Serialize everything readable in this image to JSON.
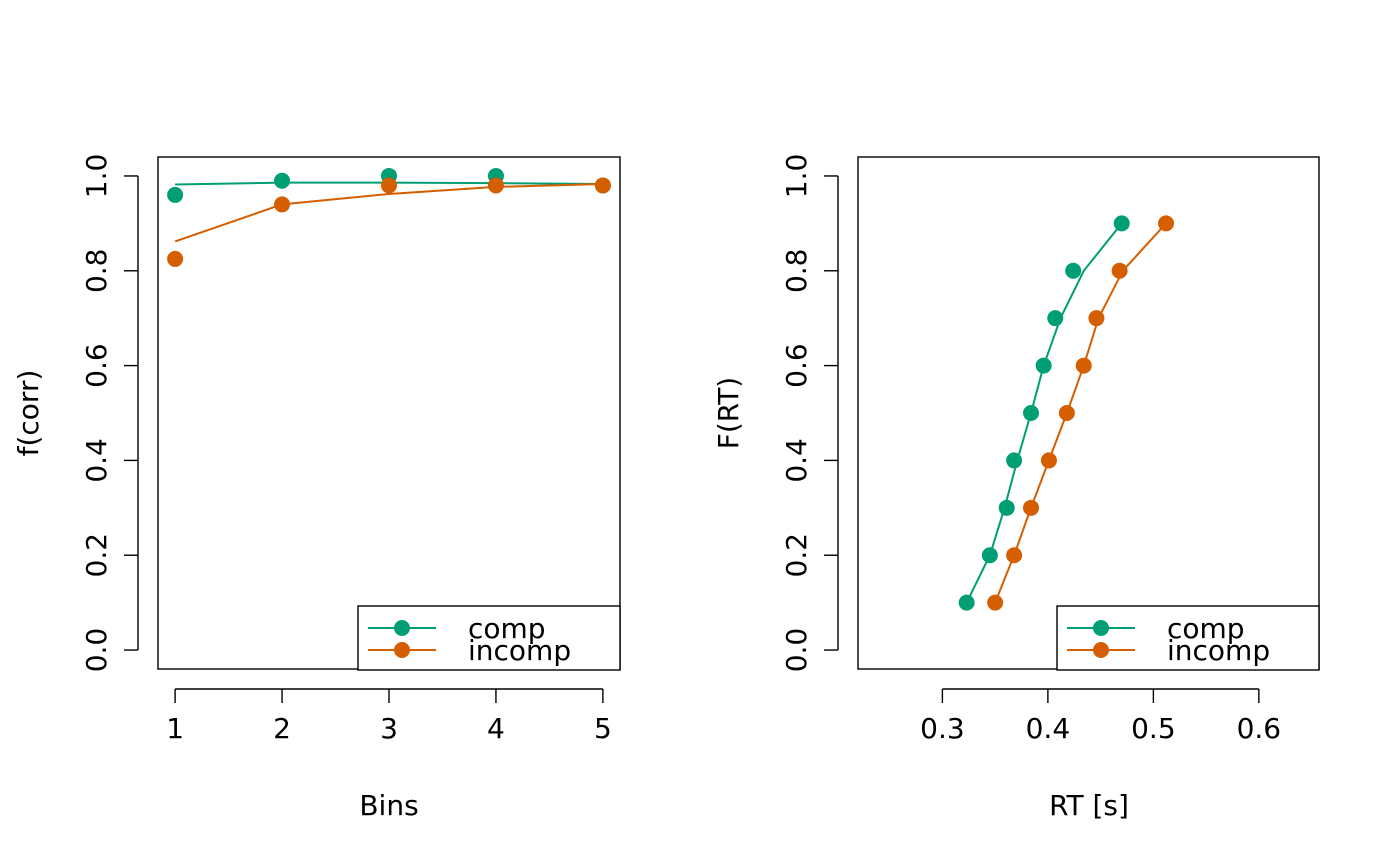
{
  "chart_data": [
    {
      "type": "line",
      "title": "",
      "xlabel": "Bins",
      "ylabel": "f(corr)",
      "xlim": [
        0.84,
        5.16
      ],
      "ylim": [
        -0.04,
        1.04
      ],
      "xticks": [
        1,
        2,
        3,
        4,
        5
      ],
      "yticks": [
        0.0,
        0.2,
        0.4,
        0.6,
        0.8,
        1.0
      ],
      "grid": false,
      "legend": {
        "position": "bottom-right"
      },
      "series": [
        {
          "name": "comp",
          "color": "#009E73",
          "points": {
            "x": [
              1,
              2,
              3,
              4,
              5
            ],
            "y": [
              0.96,
              0.99,
              1.0,
              1.0,
              0.98
            ]
          },
          "line": {
            "x": [
              1,
              2,
              3,
              4,
              5
            ],
            "y": [
              0.982,
              0.986,
              0.986,
              0.985,
              0.983
            ]
          }
        },
        {
          "name": "incomp",
          "color": "#D55E00",
          "points": {
            "x": [
              1,
              2,
              3,
              4,
              5
            ],
            "y": [
              0.825,
              0.94,
              0.98,
              0.98,
              0.98
            ]
          },
          "line": {
            "x": [
              1,
              2,
              3,
              4,
              5
            ],
            "y": [
              0.862,
              0.94,
              0.962,
              0.977,
              0.983
            ]
          }
        }
      ]
    },
    {
      "type": "line",
      "title": "",
      "xlabel": "RT [s]",
      "ylabel": "F(RT)",
      "xlim": [
        0.22,
        0.657
      ],
      "ylim": [
        -0.04,
        1.04
      ],
      "xticks": [
        0.3,
        0.4,
        0.5,
        0.6
      ],
      "yticks": [
        0.0,
        0.2,
        0.4,
        0.6,
        0.8,
        1.0
      ],
      "grid": false,
      "legend": {
        "position": "bottom-right"
      },
      "series": [
        {
          "name": "comp",
          "color": "#009E73",
          "points": {
            "x": [
              0.323,
              0.345,
              0.361,
              0.368,
              0.384,
              0.396,
              0.407,
              0.424,
              0.47
            ],
            "y": [
              0.1,
              0.2,
              0.3,
              0.4,
              0.5,
              0.6,
              0.7,
              0.8,
              0.9
            ]
          },
          "line": {
            "x": [
              0.323,
              0.345,
              0.359,
              0.371,
              0.384,
              0.396,
              0.412,
              0.434,
              0.47
            ],
            "y": [
              0.1,
              0.2,
              0.3,
              0.4,
              0.5,
              0.6,
              0.7,
              0.8,
              0.9
            ]
          }
        },
        {
          "name": "incomp",
          "color": "#D55E00",
          "points": {
            "x": [
              0.35,
              0.368,
              0.384,
              0.401,
              0.418,
              0.434,
              0.446,
              0.468,
              0.512
            ],
            "y": [
              0.1,
              0.2,
              0.3,
              0.4,
              0.5,
              0.6,
              0.7,
              0.8,
              0.9
            ]
          },
          "line": {
            "x": [
              0.35,
              0.368,
              0.384,
              0.401,
              0.418,
              0.434,
              0.448,
              0.471,
              0.512
            ],
            "y": [
              0.1,
              0.2,
              0.3,
              0.4,
              0.5,
              0.6,
              0.7,
              0.8,
              0.9
            ]
          }
        }
      ]
    }
  ]
}
